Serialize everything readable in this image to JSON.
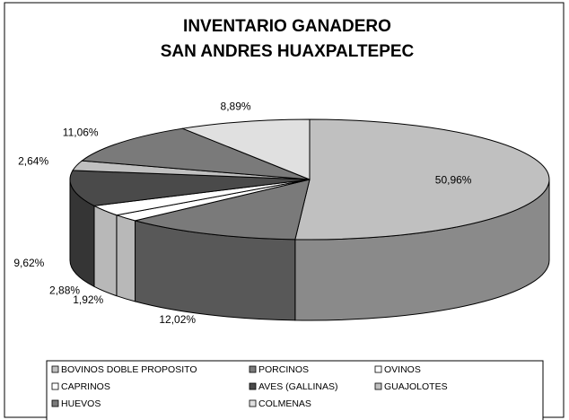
{
  "chart_data": {
    "type": "pie3d",
    "title": "INVENTARIO GANADERO",
    "subtitle": "SAN ANDRES HUAXPALTEPEC",
    "categories": [
      "BOVINOS DOBLE PROPOSITO",
      "PORCINOS",
      "OVINOS",
      "CAPRINOS",
      "AVES (GALLINAS)",
      "GUAJOLOTES",
      "HUEVOS",
      "COLMENAS"
    ],
    "values": [
      50.96,
      12.02,
      1.92,
      2.88,
      9.62,
      2.64,
      11.06,
      8.89
    ],
    "value_labels": [
      "50,96%",
      "12,02%",
      "1,92%",
      "2,88%",
      "9,62%",
      "2,64%",
      "11,06%",
      "8,89%"
    ],
    "colors": [
      "#c0c0c0",
      "#7a7a7a",
      "#ffffff",
      "#ffffff",
      "#4a4a4a",
      "#c0c0c0",
      "#7a7a7a",
      "#e0e0e0"
    ],
    "legend": "bottom"
  }
}
